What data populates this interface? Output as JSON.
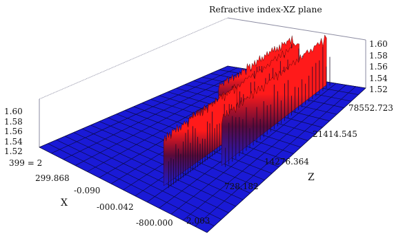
{
  "chart_data": {
    "type": "surface3d",
    "title": "Refractive index-XZ plane",
    "xlabel": "X",
    "zlabel": "Z",
    "vertical_axis": {
      "range": [
        1.52,
        1.6
      ],
      "ticks_left": [
        "1.60",
        "1.58",
        "1.56",
        "1.54",
        "1.52"
      ],
      "ticks_right": [
        "1.60",
        "1.58",
        "1.56",
        "1.54",
        "1.52"
      ]
    },
    "x_ticks": [
      "399 = 2",
      "299.868",
      "-0.090",
      "-000.042",
      "-800.000"
    ],
    "z_ticks": [
      "2.003",
      "728.182",
      "14276.364",
      "21414.545",
      "78552.723"
    ],
    "surface": {
      "base_value": 1.52,
      "peak_value": 1.6,
      "ridges": [
        {
          "name_hint": "",
          "z_start_frac": 0.12,
          "z_end_frac": 0.55,
          "x_center_frac": 0.62,
          "width_frac": 0.05,
          "level": 1.6
        },
        {
          "name_hint": "",
          "z_start_frac": 0.35,
          "z_end_frac": 0.98,
          "x_center_frac": 0.74,
          "width_frac": 0.04,
          "level": 1.6
        },
        {
          "name_hint": "",
          "z_start_frac": 0.3,
          "z_end_frac": 0.95,
          "x_center_frac": 0.58,
          "width_frac": 0.04,
          "level": 1.59
        },
        {
          "name_hint": "",
          "z_start_frac": 0.55,
          "z_end_frac": 0.98,
          "x_center_frac": 0.5,
          "width_frac": 0.04,
          "level": 1.59
        }
      ]
    },
    "colors": {
      "low": "#1a1ad6",
      "high": "#ff1a1a",
      "grid": "#0b0b44",
      "frame": "#8a8aa0"
    }
  }
}
